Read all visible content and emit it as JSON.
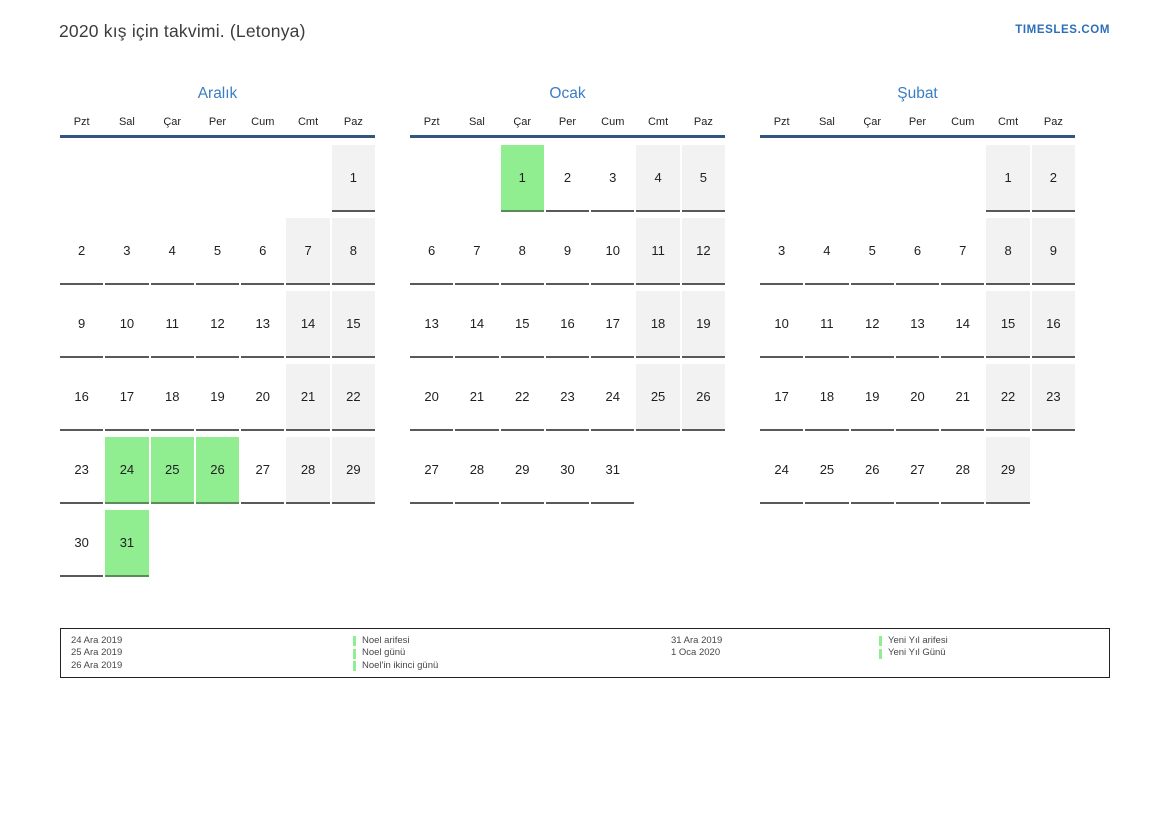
{
  "header": {
    "title": "2020 kış için takvimi. (Letonya)",
    "brand": "TIMESLES.COM"
  },
  "weekdays": [
    "Pzt",
    "Sal",
    "Çar",
    "Per",
    "Cum",
    "Cmt",
    "Paz"
  ],
  "months": [
    {
      "name": "Aralık",
      "weeks": [
        [
          null,
          null,
          null,
          null,
          null,
          null,
          {
            "d": 1,
            "k": "we"
          }
        ],
        [
          {
            "d": 2,
            "k": "wd"
          },
          {
            "d": 3,
            "k": "wd"
          },
          {
            "d": 4,
            "k": "wd"
          },
          {
            "d": 5,
            "k": "wd"
          },
          {
            "d": 6,
            "k": "wd"
          },
          {
            "d": 7,
            "k": "we"
          },
          {
            "d": 8,
            "k": "we"
          }
        ],
        [
          {
            "d": 9,
            "k": "wd"
          },
          {
            "d": 10,
            "k": "wd"
          },
          {
            "d": 11,
            "k": "wd"
          },
          {
            "d": 12,
            "k": "wd"
          },
          {
            "d": 13,
            "k": "wd"
          },
          {
            "d": 14,
            "k": "we"
          },
          {
            "d": 15,
            "k": "we"
          }
        ],
        [
          {
            "d": 16,
            "k": "wd"
          },
          {
            "d": 17,
            "k": "wd"
          },
          {
            "d": 18,
            "k": "wd"
          },
          {
            "d": 19,
            "k": "wd"
          },
          {
            "d": 20,
            "k": "wd"
          },
          {
            "d": 21,
            "k": "we"
          },
          {
            "d": 22,
            "k": "we"
          }
        ],
        [
          {
            "d": 23,
            "k": "wd"
          },
          {
            "d": 24,
            "k": "h"
          },
          {
            "d": 25,
            "k": "h"
          },
          {
            "d": 26,
            "k": "h"
          },
          {
            "d": 27,
            "k": "wd"
          },
          {
            "d": 28,
            "k": "we"
          },
          {
            "d": 29,
            "k": "we"
          }
        ],
        [
          {
            "d": 30,
            "k": "wd"
          },
          {
            "d": 31,
            "k": "h"
          },
          null,
          null,
          null,
          null,
          null
        ]
      ]
    },
    {
      "name": "Ocak",
      "weeks": [
        [
          null,
          null,
          {
            "d": 1,
            "k": "h"
          },
          {
            "d": 2,
            "k": "wd"
          },
          {
            "d": 3,
            "k": "wd"
          },
          {
            "d": 4,
            "k": "we"
          },
          {
            "d": 5,
            "k": "we"
          }
        ],
        [
          {
            "d": 6,
            "k": "wd"
          },
          {
            "d": 7,
            "k": "wd"
          },
          {
            "d": 8,
            "k": "wd"
          },
          {
            "d": 9,
            "k": "wd"
          },
          {
            "d": 10,
            "k": "wd"
          },
          {
            "d": 11,
            "k": "we"
          },
          {
            "d": 12,
            "k": "we"
          }
        ],
        [
          {
            "d": 13,
            "k": "wd"
          },
          {
            "d": 14,
            "k": "wd"
          },
          {
            "d": 15,
            "k": "wd"
          },
          {
            "d": 16,
            "k": "wd"
          },
          {
            "d": 17,
            "k": "wd"
          },
          {
            "d": 18,
            "k": "we"
          },
          {
            "d": 19,
            "k": "we"
          }
        ],
        [
          {
            "d": 20,
            "k": "wd"
          },
          {
            "d": 21,
            "k": "wd"
          },
          {
            "d": 22,
            "k": "wd"
          },
          {
            "d": 23,
            "k": "wd"
          },
          {
            "d": 24,
            "k": "wd"
          },
          {
            "d": 25,
            "k": "we"
          },
          {
            "d": 26,
            "k": "we"
          }
        ],
        [
          {
            "d": 27,
            "k": "wd"
          },
          {
            "d": 28,
            "k": "wd"
          },
          {
            "d": 29,
            "k": "wd"
          },
          {
            "d": 30,
            "k": "wd"
          },
          {
            "d": 31,
            "k": "wd"
          },
          null,
          null
        ]
      ]
    },
    {
      "name": "Şubat",
      "weeks": [
        [
          null,
          null,
          null,
          null,
          null,
          {
            "d": 1,
            "k": "we"
          },
          {
            "d": 2,
            "k": "we"
          }
        ],
        [
          {
            "d": 3,
            "k": "wd"
          },
          {
            "d": 4,
            "k": "wd"
          },
          {
            "d": 5,
            "k": "wd"
          },
          {
            "d": 6,
            "k": "wd"
          },
          {
            "d": 7,
            "k": "wd"
          },
          {
            "d": 8,
            "k": "we"
          },
          {
            "d": 9,
            "k": "we"
          }
        ],
        [
          {
            "d": 10,
            "k": "wd"
          },
          {
            "d": 11,
            "k": "wd"
          },
          {
            "d": 12,
            "k": "wd"
          },
          {
            "d": 13,
            "k": "wd"
          },
          {
            "d": 14,
            "k": "wd"
          },
          {
            "d": 15,
            "k": "we"
          },
          {
            "d": 16,
            "k": "we"
          }
        ],
        [
          {
            "d": 17,
            "k": "wd"
          },
          {
            "d": 18,
            "k": "wd"
          },
          {
            "d": 19,
            "k": "wd"
          },
          {
            "d": 20,
            "k": "wd"
          },
          {
            "d": 21,
            "k": "wd"
          },
          {
            "d": 22,
            "k": "we"
          },
          {
            "d": 23,
            "k": "we"
          }
        ],
        [
          {
            "d": 24,
            "k": "wd"
          },
          {
            "d": 25,
            "k": "wd"
          },
          {
            "d": 26,
            "k": "wd"
          },
          {
            "d": 27,
            "k": "wd"
          },
          {
            "d": 28,
            "k": "wd"
          },
          {
            "d": 29,
            "k": "we"
          },
          null
        ]
      ]
    }
  ],
  "legend": {
    "groups": [
      {
        "dates": [
          "24 Ara 2019",
          "25 Ara 2019",
          "26 Ara 2019"
        ],
        "entries": [
          "Noel arifesi",
          "Noel günü",
          "Noel'in ikinci günü"
        ]
      },
      {
        "dates": [
          "31 Ara 2019",
          "1 Oca 2020"
        ],
        "entries": [
          "Yeni Yıl arifesi",
          "Yeni Yıl Günü"
        ]
      }
    ]
  },
  "colors": {
    "holiday": "#90ee90",
    "weekend_bg": "#f2f2f2",
    "month_title": "#3b7dc4",
    "brand": "#2d6fb8",
    "header_rule": "#33567e",
    "cell_rule": "#58595b",
    "holiday_rule": "#5b8a5b",
    "text": "#1f1f1f",
    "muted_text": "#474747",
    "legend_border": "#222222"
  }
}
